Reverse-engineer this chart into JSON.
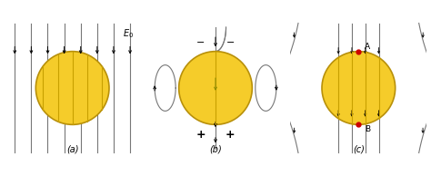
{
  "background_color": "#ffffff",
  "sphere_color": "#f5cc2a",
  "sphere_edge_color": "#b8900a",
  "line_color": "#777777",
  "arrow_color": "#000000",
  "red_dot_color": "#cc0000",
  "figsize": [
    4.74,
    1.94
  ],
  "dpi": 100,
  "panels": [
    "(a)",
    "(b)",
    "(c)"
  ]
}
